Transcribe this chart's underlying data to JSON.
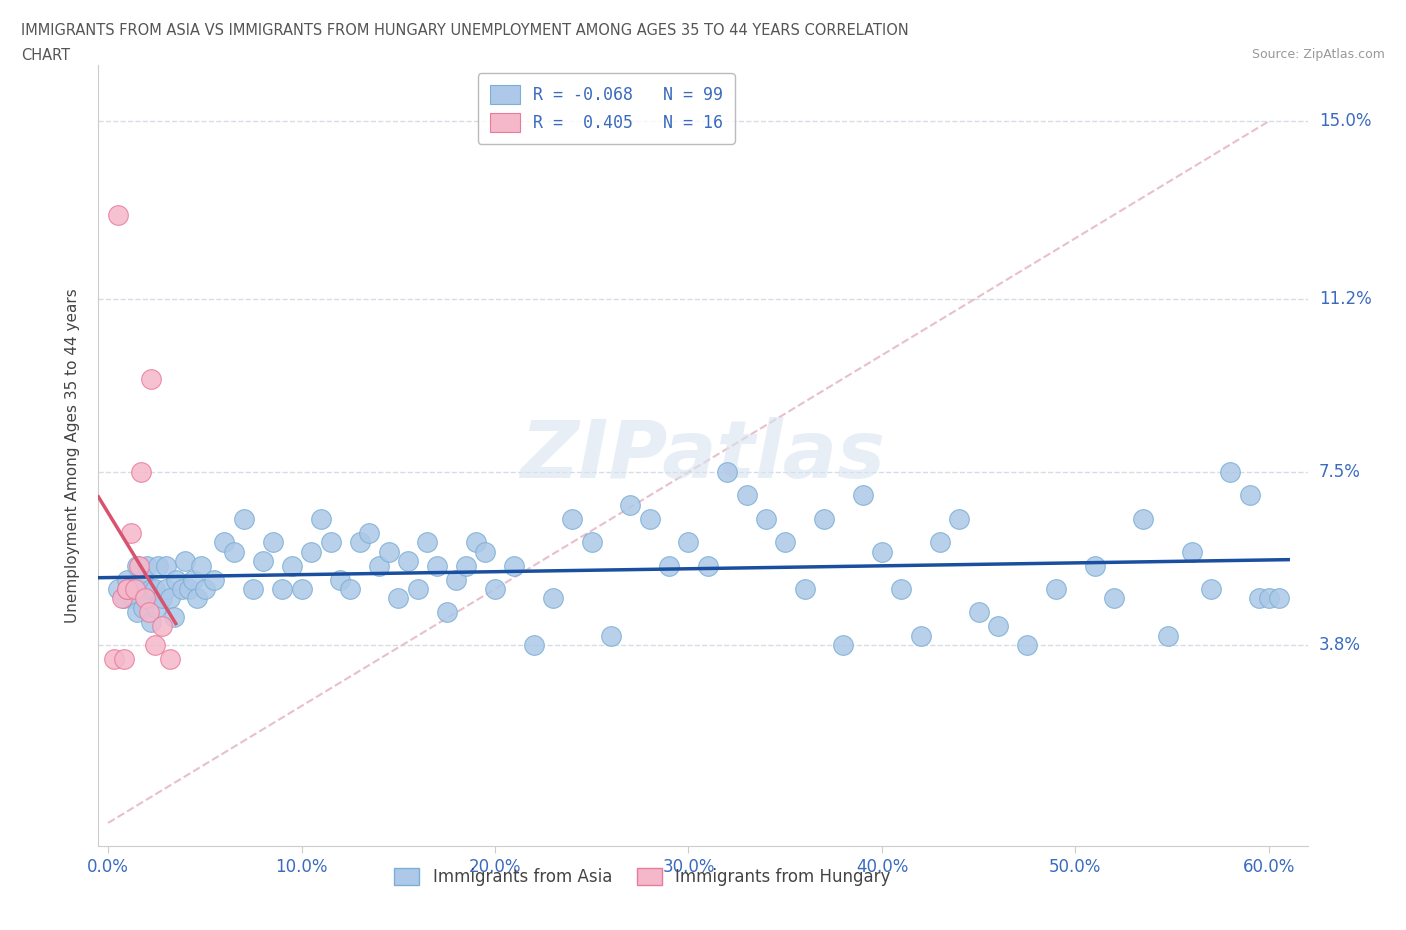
{
  "title_line1": "IMMIGRANTS FROM ASIA VS IMMIGRANTS FROM HUNGARY UNEMPLOYMENT AMONG AGES 35 TO 44 YEARS CORRELATION",
  "title_line2": "CHART",
  "source": "Source: ZipAtlas.com",
  "ylabel": "Unemployment Among Ages 35 to 44 years",
  "xlim": [
    -0.005,
    0.62
  ],
  "ylim": [
    -0.005,
    0.162
  ],
  "yticks": [
    0.038,
    0.075,
    0.112,
    0.15
  ],
  "ytick_labels": [
    "3.8%",
    "7.5%",
    "11.2%",
    "15.0%"
  ],
  "xticks": [
    0.0,
    0.1,
    0.2,
    0.3,
    0.4,
    0.5,
    0.6
  ],
  "xtick_labels": [
    "0.0%",
    "10.0%",
    "20.0%",
    "30.0%",
    "40.0%",
    "50.0%",
    "60.0%"
  ],
  "legend_asia_label": "Immigrants from Asia",
  "legend_hungary_label": "Immigrants from Hungary",
  "R_asia": -0.068,
  "N_asia": 99,
  "R_hungary": 0.405,
  "N_hungary": 16,
  "asia_color": "#adc8e8",
  "asia_edge_color": "#7bafd4",
  "hungary_color": "#f5b8cb",
  "hungary_edge_color": "#e87a9a",
  "asia_line_color": "#1a4fa0",
  "hungary_line_color": "#d9536e",
  "ref_line_color": "#e8c0cc",
  "grid_color": "#d4dce8",
  "background_color": "#ffffff",
  "watermark": "ZIPatlas",
  "title_color": "#555555",
  "label_color": "#3a6bbf",
  "asia_scatter_x": [
    0.005,
    0.008,
    0.01,
    0.012,
    0.013,
    0.015,
    0.015,
    0.016,
    0.018,
    0.018,
    0.02,
    0.02,
    0.022,
    0.022,
    0.024,
    0.025,
    0.026,
    0.028,
    0.03,
    0.03,
    0.032,
    0.034,
    0.035,
    0.038,
    0.04,
    0.042,
    0.044,
    0.046,
    0.048,
    0.05,
    0.055,
    0.06,
    0.065,
    0.07,
    0.075,
    0.08,
    0.085,
    0.09,
    0.095,
    0.1,
    0.105,
    0.11,
    0.115,
    0.12,
    0.125,
    0.13,
    0.135,
    0.14,
    0.145,
    0.15,
    0.155,
    0.16,
    0.165,
    0.17,
    0.175,
    0.18,
    0.185,
    0.19,
    0.195,
    0.2,
    0.21,
    0.22,
    0.23,
    0.24,
    0.25,
    0.26,
    0.27,
    0.28,
    0.29,
    0.3,
    0.31,
    0.32,
    0.33,
    0.34,
    0.35,
    0.36,
    0.37,
    0.38,
    0.39,
    0.4,
    0.41,
    0.42,
    0.43,
    0.44,
    0.45,
    0.46,
    0.475,
    0.49,
    0.51,
    0.52,
    0.535,
    0.548,
    0.56,
    0.57,
    0.58,
    0.59,
    0.595,
    0.6,
    0.605
  ],
  "asia_scatter_y": [
    0.05,
    0.048,
    0.052,
    0.05,
    0.048,
    0.055,
    0.045,
    0.05,
    0.052,
    0.046,
    0.048,
    0.055,
    0.05,
    0.043,
    0.05,
    0.046,
    0.055,
    0.048,
    0.05,
    0.055,
    0.048,
    0.044,
    0.052,
    0.05,
    0.056,
    0.05,
    0.052,
    0.048,
    0.055,
    0.05,
    0.052,
    0.06,
    0.058,
    0.065,
    0.05,
    0.056,
    0.06,
    0.05,
    0.055,
    0.05,
    0.058,
    0.065,
    0.06,
    0.052,
    0.05,
    0.06,
    0.062,
    0.055,
    0.058,
    0.048,
    0.056,
    0.05,
    0.06,
    0.055,
    0.045,
    0.052,
    0.055,
    0.06,
    0.058,
    0.05,
    0.055,
    0.038,
    0.048,
    0.065,
    0.06,
    0.04,
    0.068,
    0.065,
    0.055,
    0.06,
    0.055,
    0.075,
    0.07,
    0.065,
    0.06,
    0.05,
    0.065,
    0.038,
    0.07,
    0.058,
    0.05,
    0.04,
    0.06,
    0.065,
    0.045,
    0.042,
    0.038,
    0.05,
    0.055,
    0.048,
    0.065,
    0.04,
    0.058,
    0.05,
    0.075,
    0.07,
    0.048,
    0.048,
    0.048
  ],
  "hungary_scatter_x": [
    0.003,
    0.005,
    0.007,
    0.008,
    0.01,
    0.01,
    0.012,
    0.014,
    0.016,
    0.017,
    0.019,
    0.021,
    0.022,
    0.024,
    0.028,
    0.032
  ],
  "hungary_scatter_y": [
    0.035,
    0.13,
    0.048,
    0.035,
    0.05,
    0.05,
    0.062,
    0.05,
    0.055,
    0.075,
    0.048,
    0.045,
    0.095,
    0.038,
    0.042,
    0.035
  ]
}
